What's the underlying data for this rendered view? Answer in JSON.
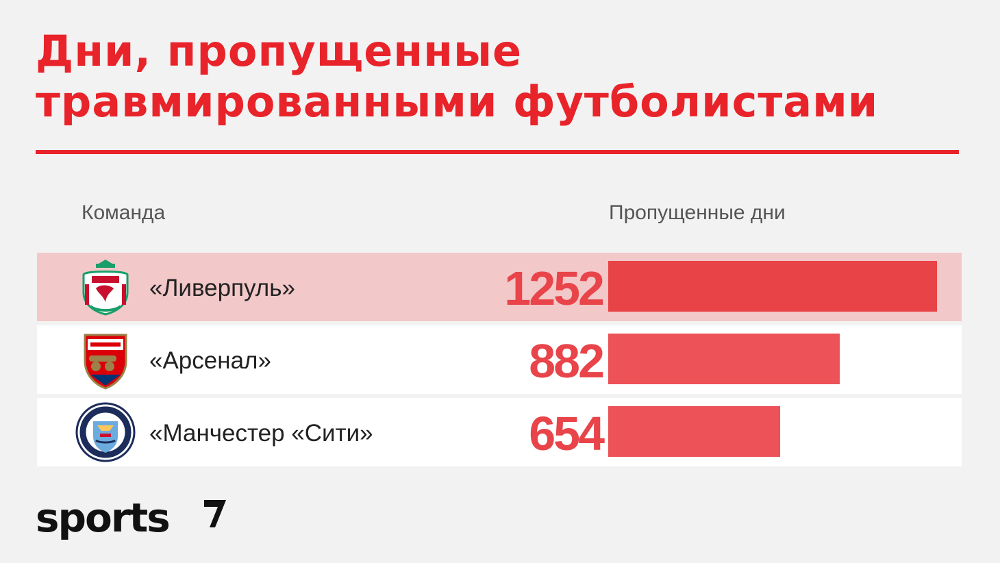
{
  "title_lines": [
    "Дни, пропущенные",
    "травмированными футболистами"
  ],
  "headers": {
    "team": "Команда",
    "days": "Пропущенные дни"
  },
  "brand": "sports",
  "colors": {
    "accent": "#e8232a",
    "bar": "#e84346",
    "highlight_row": "#f2c8c9"
  },
  "chart_data": {
    "type": "bar",
    "orientation": "horizontal",
    "categories": [
      "«Ливерпуль»",
      "«Арсенал»",
      "«Манчестер «Сити»"
    ],
    "values": [
      1252,
      882,
      654
    ],
    "logos": [
      "liverpool-crest-icon",
      "arsenal-crest-icon",
      "manchester-city-crest-icon"
    ],
    "highlighted_category": "«Ливерпуль»",
    "title": "Дни, пропущенные травмированными футболистами",
    "xlabel": "Пропущенные дни",
    "ylabel": "Команда",
    "xlim": [
      0,
      1252
    ]
  }
}
